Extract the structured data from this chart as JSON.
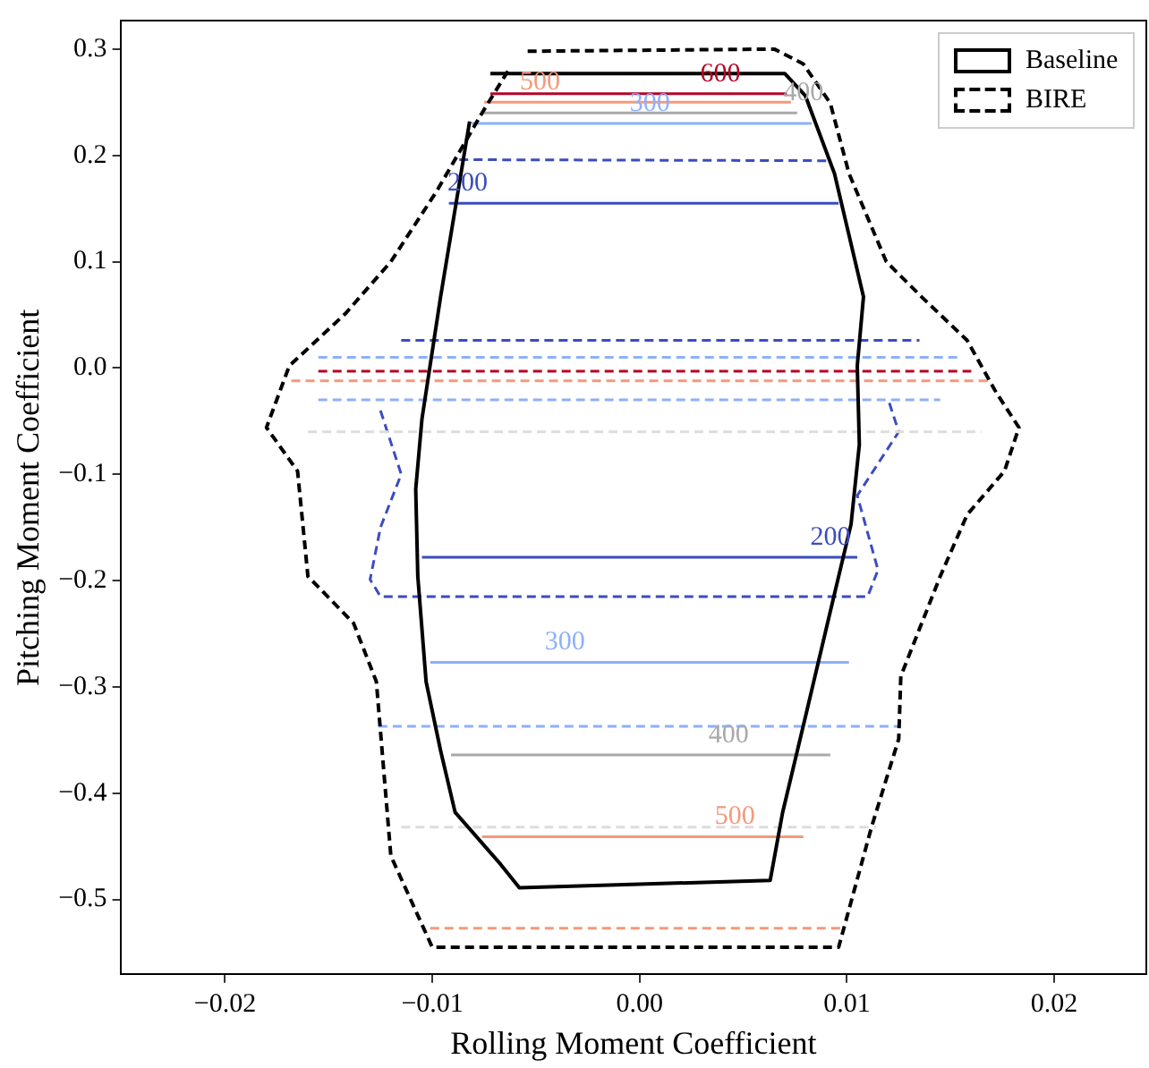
{
  "chart_data": {
    "type": "line",
    "xlabel": "Rolling Moment Coefficient",
    "ylabel": "Pitching Moment Coefficient",
    "xlim": [
      -0.025,
      0.0244
    ],
    "ylim": [
      -0.57,
      0.326
    ],
    "xticks": [
      {
        "value": -0.02,
        "label": "−0.02"
      },
      {
        "value": -0.01,
        "label": "−0.01"
      },
      {
        "value": 0,
        "label": "0.00"
      },
      {
        "value": 0.01,
        "label": "0.01"
      },
      {
        "value": 0.02,
        "label": "0.02"
      }
    ],
    "yticks": [
      {
        "value": -0.5,
        "label": "−0.5"
      },
      {
        "value": -0.4,
        "label": "−0.4"
      },
      {
        "value": -0.3,
        "label": "−0.3"
      },
      {
        "value": -0.2,
        "label": "−0.2"
      },
      {
        "value": -0.1,
        "label": "−0.1"
      },
      {
        "value": 0,
        "label": "0.0"
      },
      {
        "value": 0.1,
        "label": "0.1"
      },
      {
        "value": 0.2,
        "label": "0.2"
      },
      {
        "value": 0.3,
        "label": "0.3"
      }
    ],
    "grid": false,
    "legend": "top right",
    "marker": "none",
    "series": [
      {
        "name": "Baseline",
        "color": "#000000",
        "line_style": "solid",
        "x": [
          -0.0072,
          0.007,
          0.008,
          0.0094,
          0.0108,
          0.0105,
          0.0106,
          0.0102,
          0.0092,
          0.008,
          0.0069,
          0.0063,
          -0.0058,
          -0.0067,
          -0.0089,
          -0.0096,
          -0.0103,
          -0.0107,
          -0.0108,
          -0.0105,
          -0.0096,
          -0.0082
        ],
        "values": [
          0.277,
          0.277,
          0.256,
          0.183,
          0.067,
          0.002,
          -0.072,
          -0.147,
          -0.229,
          -0.328,
          -0.418,
          -0.482,
          -0.489,
          -0.467,
          -0.418,
          -0.36,
          -0.295,
          -0.196,
          -0.114,
          -0.048,
          0.067,
          0.232
        ]
      },
      {
        "name": "BIRE",
        "color": "#000000",
        "line_style": "dashed",
        "x": [
          -0.0054,
          0.0065,
          0.0079,
          0.0092,
          0.0101,
          0.0119,
          0.0136,
          0.0158,
          0.0172,
          0.0183,
          0.0176,
          0.0158,
          0.0145,
          0.0126,
          0.0125,
          0.0112,
          0.0096,
          -0.01,
          -0.012,
          -0.0127,
          -0.0138,
          -0.016,
          -0.0165,
          -0.018,
          -0.0169,
          -0.0142,
          -0.012,
          -0.0098,
          -0.0076,
          -0.0063
        ],
        "values": [
          0.298,
          0.3,
          0.286,
          0.249,
          0.183,
          0.1,
          0.067,
          0.026,
          -0.023,
          -0.056,
          -0.097,
          -0.138,
          -0.196,
          -0.29,
          -0.349,
          -0.431,
          -0.545,
          -0.545,
          -0.459,
          -0.295,
          -0.24,
          -0.196,
          -0.097,
          -0.056,
          0.002,
          0.051,
          0.1,
          0.166,
          0.24,
          0.281
        ]
      },
      {
        "color": "#b40426",
        "line_style": "solid",
        "x": [
          -0.0072,
          0.0071
        ],
        "values": [
          0.258,
          0.258
        ]
      },
      {
        "color": "#f49a7b",
        "line_style": "solid",
        "x": [
          -0.0075,
          0.0073
        ],
        "values": [
          0.25,
          0.25
        ]
      },
      {
        "color": "#a9a9a9",
        "line_style": "solid",
        "x": [
          -0.0076,
          0.0076
        ],
        "values": [
          0.24,
          0.24
        ]
      },
      {
        "color": "#8db0fe",
        "line_style": "solid",
        "x": [
          -0.0081,
          0.0083
        ],
        "values": [
          0.23,
          0.23
        ]
      },
      {
        "color": "#3b4cc0",
        "line_style": "dashed",
        "x": [
          -0.0087,
          0.0092
        ],
        "values": [
          0.196,
          0.195
        ]
      },
      {
        "color": "#3b4cc0",
        "line_style": "solid",
        "x": [
          -0.0092,
          0.0096
        ],
        "values": [
          0.155,
          0.155
        ]
      },
      {
        "color": "#3b4cc0",
        "line_style": "dashed",
        "x": [
          -0.0115,
          0.0135
        ],
        "values": [
          0.026,
          0.026
        ]
      },
      {
        "color": "#8db0fe",
        "line_style": "dashed",
        "x": [
          -0.0155,
          0.0155
        ],
        "values": [
          0.01,
          0.01
        ]
      },
      {
        "color": "#b40426",
        "line_style": "dashed",
        "x": [
          -0.0155,
          0.016
        ],
        "values": [
          -0.003,
          -0.003
        ]
      },
      {
        "color": "#f49a7b",
        "line_style": "dashed",
        "x": [
          -0.0168,
          0.0168
        ],
        "values": [
          -0.012,
          -0.012
        ]
      },
      {
        "color": "#dddddd",
        "line_style": "dashed",
        "x": [
          -0.016,
          0.0165
        ],
        "values": [
          -0.06,
          -0.06
        ]
      },
      {
        "color": "#8db0fe",
        "line_style": "dashed",
        "x": [
          -0.0155,
          0.0145
        ],
        "values": [
          -0.03,
          -0.03
        ]
      },
      {
        "color": "#3b4cc0",
        "line_style": "dashed",
        "x": [
          -0.0125,
          -0.0115,
          -0.0125,
          -0.013,
          -0.0125,
          0.011,
          0.0115,
          0.0105,
          0.0125,
          0.012
        ],
        "values": [
          -0.04,
          -0.1,
          -0.15,
          -0.199,
          -0.215,
          -0.215,
          -0.19,
          -0.12,
          -0.06,
          -0.03
        ]
      },
      {
        "color": "#3b4cc0",
        "line_style": "solid",
        "x": [
          -0.0105,
          0.0105
        ],
        "values": [
          -0.178,
          -0.178
        ]
      },
      {
        "color": "#8db0fe",
        "line_style": "solid",
        "x": [
          -0.0101,
          0.0101
        ],
        "values": [
          -0.277,
          -0.277
        ]
      },
      {
        "color": "#8db0fe",
        "line_style": "dashed",
        "x": [
          -0.0126,
          0.0125
        ],
        "values": [
          -0.337,
          -0.337
        ]
      },
      {
        "color": "#a9a9a9",
        "line_style": "solid",
        "x": [
          -0.0091,
          0.0092
        ],
        "values": [
          -0.364,
          -0.364
        ]
      },
      {
        "color": "#dddddd",
        "line_style": "dashed",
        "x": [
          -0.0115,
          0.0114
        ],
        "values": [
          -0.432,
          -0.432
        ]
      },
      {
        "color": "#f49a7b",
        "line_style": "solid",
        "x": [
          -0.0076,
          0.0079
        ],
        "values": [
          -0.441,
          -0.441
        ]
      },
      {
        "color": "#f49a7b",
        "line_style": "dashed",
        "x": [
          -0.0101,
          0.0099
        ],
        "values": [
          -0.527,
          -0.527
        ]
      }
    ],
    "annotations": [
      {
        "text": "600",
        "x": 0.0039,
        "y": 0.258
      },
      {
        "text": "500",
        "x": -0.0048,
        "y": 0.25
      },
      {
        "text": "400",
        "x": 0.0079,
        "y": 0.24
      },
      {
        "text": "300",
        "x": 0.0005,
        "y": 0.23
      },
      {
        "text": "200",
        "x": -0.0083,
        "y": 0.155
      },
      {
        "text": "200",
        "x": 0.0092,
        "y": -0.178
      },
      {
        "text": "300",
        "x": -0.0036,
        "y": -0.277
      },
      {
        "text": "400",
        "x": 0.0043,
        "y": -0.364
      },
      {
        "text": "500",
        "x": 0.0046,
        "y": -0.441
      }
    ]
  }
}
